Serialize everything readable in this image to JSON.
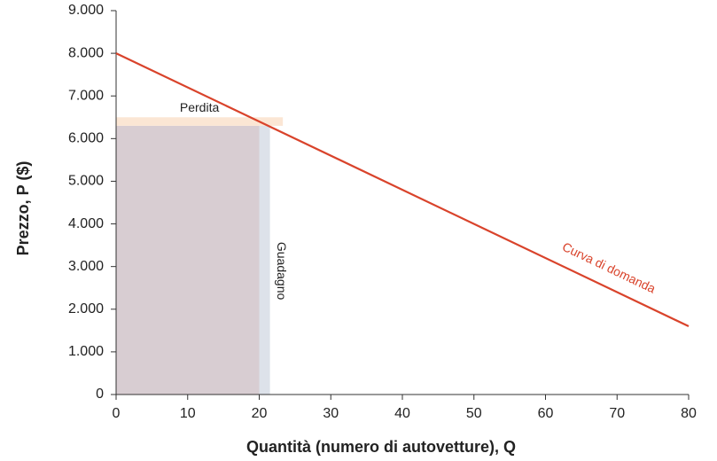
{
  "chart_data": {
    "type": "line",
    "xlabel": "Quantità (numero di autovetture), Q",
    "ylabel": "Prezzo, P  ($)",
    "xlim": [
      0,
      80
    ],
    "ylim": [
      0,
      9000
    ],
    "xticks": [
      0,
      10,
      20,
      30,
      40,
      50,
      60,
      70,
      80
    ],
    "yticks": [
      0,
      {
        "value": 1000,
        "label": "1.000"
      },
      {
        "value": 2000,
        "label": "2.000"
      },
      {
        "value": 3000,
        "label": "3.000"
      },
      {
        "value": 4000,
        "label": "4.000"
      },
      {
        "value": 5000,
        "label": "5.000"
      },
      {
        "value": 6000,
        "label": "6.000"
      },
      {
        "value": 7000,
        "label": "7.000"
      },
      {
        "value": 8000,
        "label": "8.000"
      },
      {
        "value": 9000,
        "label": "9.000"
      }
    ],
    "series": [
      {
        "name": "Curva di domanda",
        "color": "#d9432b",
        "x": [
          0,
          80
        ],
        "values": [
          8000,
          1600
        ]
      }
    ],
    "areas": [
      {
        "color": "#d8cdd2",
        "x": [
          0,
          20
        ],
        "y": [
          0,
          6300
        ]
      },
      {
        "name": "Guadagno",
        "color": "#dde2ea",
        "x": [
          20,
          21.5
        ],
        "y": [
          0,
          6300
        ]
      },
      {
        "name": "Perdita",
        "color": "#fbe6d4",
        "x": [
          0,
          23.3
        ],
        "y": [
          6300,
          6500
        ]
      }
    ]
  }
}
